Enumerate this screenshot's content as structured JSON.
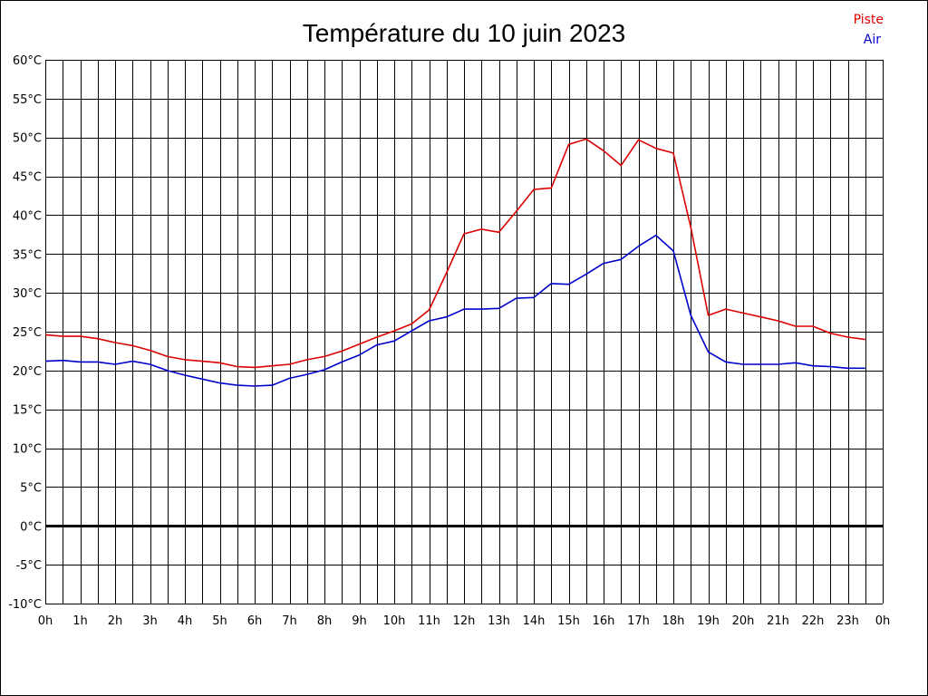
{
  "chart_data": {
    "type": "line",
    "title": "Température du 10 juin 2023",
    "xlabel": "",
    "ylabel": "",
    "ylim": [
      -10,
      60
    ],
    "y_step": 5,
    "y_unit": "°C",
    "x_tick_labels": [
      "0h",
      "1h",
      "2h",
      "3h",
      "4h",
      "5h",
      "6h",
      "7h",
      "8h",
      "9h",
      "10h",
      "11h",
      "12h",
      "13h",
      "14h",
      "15h",
      "16h",
      "17h",
      "18h",
      "19h",
      "20h",
      "21h",
      "22h",
      "23h",
      "0h"
    ],
    "y_tick_labels": [
      "60°C",
      "55°C",
      "50°C",
      "45°C",
      "40°C",
      "35°C",
      "30°C",
      "25°C",
      "20°C",
      "15°C",
      "10°C",
      "5°C",
      "0°C",
      "-5°C",
      "-10°C"
    ],
    "zero_line": true,
    "grid": true,
    "legend_position": "top-right",
    "x_hours": [
      0,
      0.5,
      1,
      1.5,
      2,
      2.5,
      3,
      3.5,
      4,
      4.5,
      5,
      5.5,
      6,
      6.5,
      7,
      7.5,
      8,
      8.5,
      9,
      9.5,
      10,
      10.5,
      11,
      11.5,
      12,
      12.5,
      13,
      13.5,
      14,
      14.5,
      15,
      15.5,
      16,
      16.5,
      17,
      17.5,
      18,
      18.5,
      19,
      19.5,
      20,
      20.5,
      21,
      21.5,
      22,
      22.5,
      23,
      23.5
    ],
    "series": [
      {
        "name": "Piste",
        "color": "#dd0000",
        "values": [
          24.6,
          24.4,
          24.4,
          24.1,
          23.6,
          23.2,
          22.6,
          21.8,
          21.4,
          21.2,
          21.0,
          20.5,
          20.4,
          20.6,
          20.8,
          21.4,
          21.8,
          22.5,
          23.4,
          24.3,
          25.1,
          26.0,
          27.8,
          32.6,
          37.6,
          38.2,
          37.8,
          40.5,
          43.3,
          43.5,
          49.1,
          49.8,
          48.3,
          46.4,
          49.7,
          48.6,
          48.0,
          38.4,
          27.1,
          27.9,
          27.4,
          26.9,
          26.4,
          25.7,
          25.7,
          24.8,
          24.3,
          24.0
        ]
      },
      {
        "name": "Air",
        "color": "#0000cc",
        "values": [
          21.2,
          21.3,
          21.1,
          21.1,
          20.8,
          21.2,
          20.8,
          20.0,
          19.4,
          18.9,
          18.4,
          18.1,
          18.0,
          18.1,
          19.0,
          19.5,
          20.1,
          21.1,
          22.0,
          23.3,
          23.8,
          25.1,
          26.4,
          26.9,
          27.9,
          27.9,
          28.0,
          29.3,
          29.4,
          31.2,
          31.1,
          32.4,
          33.8,
          34.3,
          36.0,
          37.4,
          35.4,
          27.1,
          22.4,
          21.1,
          20.8,
          20.8,
          20.8,
          21.0,
          20.6,
          20.5,
          20.3,
          20.3
        ]
      }
    ]
  }
}
